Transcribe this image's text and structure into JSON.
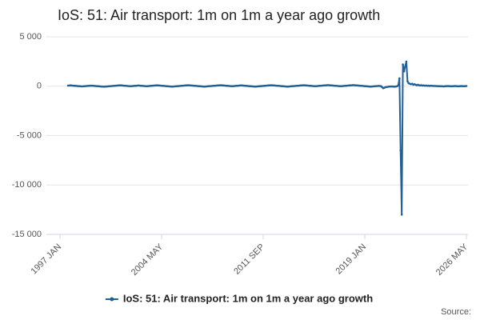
{
  "chart_data": {
    "type": "line",
    "title": "IoS: 51: Air transport: 1m on 1m a year ago growth",
    "source": "Source:",
    "xlim": [
      "1997 JAN",
      "2026 MAY"
    ],
    "xticks": [
      "1997 JAN",
      "2004 MAY",
      "2011 SEP",
      "2019 JAN",
      "2026 MAY"
    ],
    "ylim": [
      -15000,
      5000
    ],
    "yticks": [
      {
        "value": 5000,
        "label": "5 000"
      },
      0,
      {
        "value": -5000,
        "label": "-5 000"
      },
      {
        "value": -10000,
        "label": "-10 000"
      },
      {
        "value": -15000,
        "label": "-15 000"
      }
    ],
    "grid": true,
    "legend": "bottom",
    "x": [
      "1997 AUG",
      "1997 SEP",
      "1997 OCT",
      "1997 NOV",
      "1997 DEC",
      "1998 JAN",
      "1998 FEB",
      "1998 MAR",
      "1998 APR",
      "1998 MAY",
      "1998 JUN",
      "1998 JUL",
      "1998 AUG",
      "1998 SEP",
      "1998 OCT",
      "1998 NOV",
      "1998 DEC",
      "1999 JAN",
      "1999 FEB",
      "1999 MAR",
      "1999 APR",
      "1999 MAY",
      "1999 JUN",
      "1999 JUL",
      "1999 AUG",
      "1999 SEP",
      "1999 OCT",
      "1999 NOV",
      "1999 DEC",
      "2000 JAN",
      "2000 FEB",
      "2000 MAR",
      "2000 APR",
      "2000 MAY",
      "2000 JUN",
      "2000 JUL",
      "2000 AUG",
      "2000 SEP",
      "2000 OCT",
      "2000 NOV",
      "2000 DEC",
      "2001 JAN",
      "2001 FEB",
      "2001 MAR",
      "2001 APR",
      "2001 MAY",
      "2001 JUN",
      "2001 JUL",
      "2001 AUG",
      "2001 SEP",
      "2001 OCT",
      "2001 NOV",
      "2001 DEC",
      "2002 JAN",
      "2002 FEB",
      "2002 MAR",
      "2002 APR",
      "2002 MAY",
      "2002 JUN",
      "2002 JUL",
      "2002 AUG",
      "2002 SEP",
      "2002 OCT",
      "2002 NOV",
      "2002 DEC",
      "2003 JAN",
      "2003 FEB",
      "2003 MAR",
      "2003 APR",
      "2003 MAY",
      "2003 JUN",
      "2003 JUL",
      "2003 AUG",
      "2003 SEP",
      "2003 OCT",
      "2003 NOV",
      "2003 DEC",
      "2004 JAN",
      "2004 FEB",
      "2004 MAR",
      "2004 APR",
      "2004 MAY",
      "2004 JUN",
      "2004 JUL",
      "2004 AUG",
      "2004 SEP",
      "2004 OCT",
      "2004 NOV",
      "2004 DEC",
      "2005 JAN",
      "2005 FEB",
      "2005 MAR",
      "2005 APR",
      "2005 MAY",
      "2005 JUN",
      "2005 JUL",
      "2005 AUG",
      "2005 SEP",
      "2005 OCT",
      "2005 NOV",
      "2005 DEC",
      "2006 JAN",
      "2006 FEB",
      "2006 MAR",
      "2006 APR",
      "2006 MAY",
      "2006 JUN",
      "2006 JUL",
      "2006 AUG",
      "2006 SEP",
      "2006 OCT",
      "2006 NOV",
      "2006 DEC",
      "2007 JAN",
      "2007 FEB",
      "2007 MAR",
      "2007 APR",
      "2007 MAY",
      "2007 JUN",
      "2007 JUL",
      "2007 AUG",
      "2007 SEP",
      "2007 OCT",
      "2007 NOV",
      "2007 DEC",
      "2008 JAN",
      "2008 FEB",
      "2008 MAR",
      "2008 APR",
      "2008 MAY",
      "2008 JUN",
      "2008 JUL",
      "2008 AUG",
      "2008 SEP",
      "2008 OCT",
      "2008 NOV",
      "2008 DEC",
      "2009 JAN",
      "2009 FEB",
      "2009 MAR",
      "2009 APR",
      "2009 MAY",
      "2009 JUN",
      "2009 JUL",
      "2009 AUG",
      "2009 SEP",
      "2009 OCT",
      "2009 NOV",
      "2009 DEC",
      "2010 JAN",
      "2010 FEB",
      "2010 MAR",
      "2010 APR",
      "2010 MAY",
      "2010 JUN",
      "2010 JUL",
      "2010 AUG",
      "2010 SEP",
      "2010 OCT",
      "2010 NOV",
      "2010 DEC",
      "2011 JAN",
      "2011 FEB",
      "2011 MAR",
      "2011 APR",
      "2011 MAY",
      "2011 JUN",
      "2011 JUL",
      "2011 AUG",
      "2011 SEP",
      "2011 OCT",
      "2011 NOV",
      "2011 DEC",
      "2012 JAN",
      "2012 FEB",
      "2012 MAR",
      "2012 APR",
      "2012 MAY",
      "2012 JUN",
      "2012 JUL",
      "2012 AUG",
      "2012 SEP",
      "2012 OCT",
      "2012 NOV",
      "2012 DEC",
      "2013 JAN",
      "2013 FEB",
      "2013 MAR",
      "2013 APR",
      "2013 MAY",
      "2013 JUN",
      "2013 JUL",
      "2013 AUG",
      "2013 SEP",
      "2013 OCT",
      "2013 NOV",
      "2013 DEC",
      "2014 JAN",
      "2014 FEB",
      "2014 MAR",
      "2014 APR",
      "2014 MAY",
      "2014 JUN",
      "2014 JUL",
      "2014 AUG",
      "2014 SEP",
      "2014 OCT",
      "2014 NOV",
      "2014 DEC",
      "2015 JAN",
      "2015 FEB",
      "2015 MAR",
      "2015 APR",
      "2015 MAY",
      "2015 JUN",
      "2015 JUL",
      "2015 AUG",
      "2015 SEP",
      "2015 OCT",
      "2015 NOV",
      "2015 DEC",
      "2016 JAN",
      "2016 FEB",
      "2016 MAR",
      "2016 APR",
      "2016 MAY",
      "2016 JUN",
      "2016 JUL",
      "2016 AUG",
      "2016 SEP",
      "2016 OCT",
      "2016 NOV",
      "2016 DEC",
      "2017 JAN",
      "2017 FEB",
      "2017 MAR",
      "2017 APR",
      "2017 MAY",
      "2017 JUN",
      "2017 JUL",
      "2017 AUG",
      "2017 SEP",
      "2017 OCT",
      "2017 NOV",
      "2017 DEC",
      "2018 JAN",
      "2018 FEB",
      "2018 MAR",
      "2018 APR",
      "2018 MAY",
      "2018 JUN",
      "2018 JUL",
      "2018 AUG",
      "2018 SEP",
      "2018 OCT",
      "2018 NOV",
      "2018 DEC",
      "2019 JAN",
      "2019 FEB",
      "2019 MAR",
      "2019 APR",
      "2019 MAY",
      "2019 JUN",
      "2019 JUL",
      "2019 AUG",
      "2019 SEP",
      "2019 OCT",
      "2019 NOV",
      "2019 DEC",
      "2020 JAN",
      "2020 FEB",
      "2020 MAR",
      "2020 APR",
      "2020 MAY",
      "2020 JUN",
      "2020 JUL",
      "2020 AUG",
      "2020 SEP",
      "2020 OCT",
      "2020 NOV",
      "2020 DEC",
      "2021 JAN",
      "2021 FEB",
      "2021 MAR",
      "2021 APR",
      "2021 MAY",
      "2021 JUN",
      "2021 JUL",
      "2021 AUG",
      "2021 SEP",
      "2021 OCT",
      "2021 NOV",
      "2021 DEC",
      "2022 JAN",
      "2022 FEB",
      "2022 MAR",
      "2022 APR",
      "2022 MAY",
      "2022 JUN",
      "2022 JUL",
      "2022 AUG",
      "2022 SEP",
      "2022 OCT",
      "2022 NOV",
      "2022 DEC",
      "2023 JAN",
      "2023 FEB",
      "2023 MAR",
      "2023 APR",
      "2023 MAY",
      "2023 JUN",
      "2023 JUL",
      "2023 AUG",
      "2023 SEP",
      "2023 OCT",
      "2023 NOV",
      "2023 DEC",
      "2024 JAN",
      "2024 FEB",
      "2024 MAR",
      "2024 APR",
      "2024 MAY",
      "2024 JUN",
      "2024 JUL",
      "2024 AUG",
      "2024 SEP",
      "2024 OCT",
      "2024 NOV",
      "2024 DEC",
      "2025 JAN",
      "2025 FEB",
      "2025 MAR",
      "2025 APR",
      "2025 MAY",
      "2025 JUN",
      "2025 JUL",
      "2025 AUG",
      "2025 SEP",
      "2025 OCT",
      "2025 NOV",
      "2025 DEC",
      "2026 JAN",
      "2026 FEB",
      "2026 MAR",
      "2026 APR",
      "2026 MAY"
    ],
    "series": [
      {
        "name": "IoS: 51: Air transport: 1m on 1m a year ago growth",
        "color": "#206095",
        "values": [
          60,
          70,
          80,
          70,
          60,
          50,
          40,
          30,
          20,
          10,
          0,
          -10,
          -20,
          -10,
          0,
          10,
          20,
          30,
          40,
          50,
          60,
          50,
          40,
          30,
          20,
          10,
          0,
          -10,
          -20,
          -30,
          -40,
          -50,
          -40,
          -30,
          -20,
          -10,
          0,
          10,
          20,
          30,
          40,
          50,
          60,
          70,
          80,
          90,
          80,
          70,
          60,
          50,
          40,
          30,
          20,
          10,
          0,
          10,
          20,
          30,
          40,
          50,
          60,
          70,
          60,
          50,
          40,
          30,
          20,
          10,
          0,
          10,
          20,
          30,
          40,
          50,
          60,
          70,
          80,
          90,
          80,
          70,
          60,
          50,
          40,
          30,
          20,
          10,
          0,
          -10,
          -20,
          -30,
          -40,
          -30,
          -20,
          -10,
          0,
          10,
          20,
          30,
          40,
          50,
          60,
          70,
          80,
          90,
          100,
          90,
          80,
          70,
          60,
          50,
          40,
          30,
          20,
          10,
          0,
          -10,
          -20,
          -30,
          -40,
          -30,
          -20,
          -10,
          0,
          10,
          20,
          30,
          40,
          50,
          60,
          70,
          80,
          90,
          100,
          90,
          80,
          70,
          60,
          50,
          40,
          30,
          20,
          10,
          0,
          10,
          20,
          30,
          40,
          50,
          60,
          70,
          80,
          70,
          60,
          50,
          40,
          30,
          20,
          10,
          0,
          -10,
          -20,
          -30,
          -40,
          -30,
          -20,
          -10,
          0,
          10,
          20,
          30,
          40,
          50,
          60,
          70,
          80,
          90,
          100,
          90,
          80,
          70,
          60,
          50,
          40,
          30,
          20,
          10,
          0,
          -10,
          -20,
          -30,
          -40,
          -30,
          -20,
          -10,
          0,
          10,
          20,
          30,
          40,
          50,
          60,
          70,
          80,
          90,
          100,
          90,
          80,
          70,
          60,
          50,
          40,
          30,
          20,
          10,
          0,
          10,
          20,
          30,
          40,
          50,
          60,
          70,
          80,
          90,
          100,
          110,
          100,
          90,
          80,
          70,
          60,
          50,
          40,
          30,
          20,
          10,
          0,
          10,
          20,
          30,
          40,
          50,
          60,
          70,
          80,
          90,
          100,
          110,
          100,
          90,
          80,
          70,
          60,
          50,
          40,
          30,
          20,
          10,
          0,
          -10,
          -20,
          -30,
          -40,
          -30,
          -20,
          -10,
          0,
          10,
          20,
          30,
          20,
          10,
          -100,
          -200,
          -150,
          -100,
          -80,
          -60,
          -40,
          -30,
          -20,
          -30,
          -40,
          -50,
          -30,
          0,
          100,
          800,
          -6500,
          -13000,
          2200,
          1500,
          2000,
          2500,
          500,
          300,
          250,
          200,
          250,
          150,
          200,
          150,
          100,
          150,
          100,
          80,
          100,
          60,
          80,
          50,
          70,
          40,
          60,
          30,
          50,
          40,
          30,
          20,
          30,
          10,
          20,
          0,
          10,
          -10,
          0,
          -20,
          -10,
          0,
          10,
          20,
          10,
          0,
          -10,
          0,
          10,
          20,
          10,
          0,
          -10,
          0,
          10,
          20,
          10,
          0,
          10,
          20
        ]
      }
    ]
  }
}
